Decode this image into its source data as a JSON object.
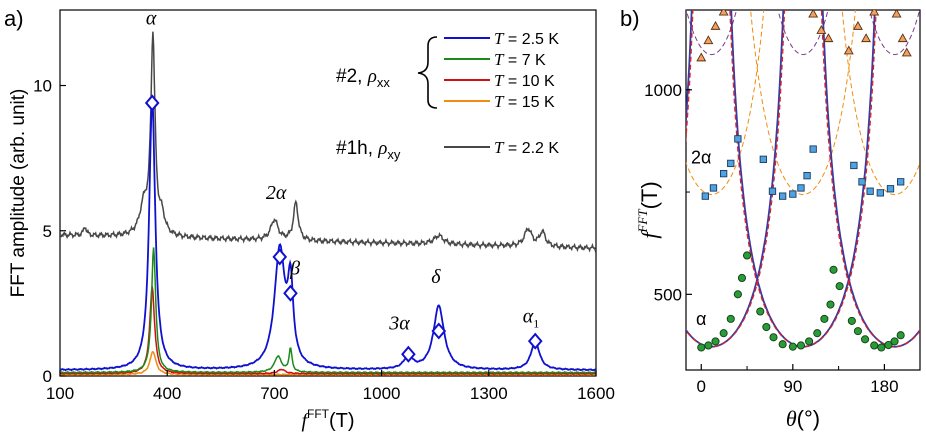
{
  "chart_data": [
    {
      "panel": "a)",
      "type": "line",
      "xlabel_main": "f",
      "xlabel_sup": "FFT",
      "xlabel_unit": "(T)",
      "ylabel": "FFT amplitude (arb. unit)",
      "xlim": [
        100,
        1600
      ],
      "ylim": [
        0,
        12.6
      ],
      "xticks": [
        100,
        400,
        700,
        1000,
        1300,
        1600
      ],
      "yticks": [
        0,
        5,
        10
      ],
      "series": [
        {
          "name": "T = 2.5 K",
          "temp": "2.5",
          "color": "#1010d0",
          "baseline": 0.2,
          "peaks": [
            [
              358,
              9.4,
              10
            ],
            [
              715,
              4.1,
              18
            ],
            [
              745,
              2.6,
              9
            ],
            [
              1075,
              0.45,
              14
            ],
            [
              1160,
              2.2,
              18
            ],
            [
              1430,
              1.0,
              14
            ]
          ]
        },
        {
          "name": "T = 7 K",
          "temp": "7",
          "color": "#1a8a1a",
          "baseline": 0.12,
          "peaks": [
            [
              362,
              4.3,
              7
            ],
            [
              710,
              0.55,
              12
            ],
            [
              745,
              0.8,
              5
            ]
          ]
        },
        {
          "name": "T = 10 K",
          "temp": "10",
          "color": "#d01010",
          "baseline": 0.08,
          "peaks": [
            [
              358,
              3.0,
              8
            ],
            [
              720,
              0.15,
              12
            ]
          ]
        },
        {
          "name": "T = 15 K",
          "temp": "15",
          "color": "#f08c10",
          "baseline": 0.05,
          "peaks": [
            [
              360,
              0.8,
              10
            ]
          ]
        },
        {
          "name": "T = 2.2 K",
          "temp": "2.2",
          "color": "#474747",
          "baseline": 4.85,
          "peaks": [
            [
              360,
              6.8,
              7
            ],
            [
              335,
              1.0,
              14
            ],
            [
              385,
              0.6,
              10
            ],
            [
              700,
              0.7,
              12
            ],
            [
              760,
              1.3,
              8
            ],
            [
              1160,
              0.3,
              16
            ],
            [
              1410,
              0.6,
              12
            ],
            [
              1450,
              0.5,
              10
            ],
            [
              170,
              0.3,
              5
            ]
          ]
        }
      ],
      "markers": [
        {
          "x": 358,
          "y": 9.4
        },
        {
          "x": 715,
          "y": 4.1
        },
        {
          "x": 745,
          "y": 2.85
        },
        {
          "x": 1075,
          "y": 0.75
        },
        {
          "x": 1160,
          "y": 1.55
        },
        {
          "x": 1430,
          "y": 1.2
        }
      ],
      "annotations": [
        {
          "text": "α",
          "x": 355,
          "y": 12.1
        },
        {
          "text": "2α",
          "x": 705,
          "y": 6.1
        },
        {
          "text": "β",
          "x": 758,
          "y": 3.5
        },
        {
          "text": "3α",
          "x": 1050,
          "y": 1.6
        },
        {
          "text": "δ",
          "x": 1152,
          "y": 3.2
        },
        {
          "text": "α1",
          "x": 1418,
          "y": 1.85
        }
      ],
      "legend": {
        "group1_label_prefix": "#2,",
        "group1_label_rho": "ρ",
        "group1_label_sub": "xx",
        "group2_label_prefix": "#1h,",
        "group2_label_rho": "ρ",
        "group2_label_sub": "xy",
        "T_symbol": "T",
        "eq": " = ",
        "unit": " K"
      }
    },
    {
      "panel": "b)",
      "type": "scatter",
      "xlabel": "θ",
      "xlabel_unit": "(°)",
      "ylabel_main": "f",
      "ylabel_sup": "FFT",
      "ylabel_unit": "(T)",
      "xlim": [
        -15,
        215
      ],
      "ylim": [
        315,
        1195
      ],
      "xticks": [
        0,
        90,
        180
      ],
      "yticks": [
        500,
        1000
      ],
      "labels": [
        {
          "text": "2α",
          "x": 0,
          "y": 820
        },
        {
          "text": "α",
          "x": 0,
          "y": 425
        }
      ],
      "alpha_points": [
        [
          0,
          370
        ],
        [
          7,
          375
        ],
        [
          14,
          385
        ],
        [
          22,
          405
        ],
        [
          29,
          440
        ],
        [
          36,
          500
        ],
        [
          40,
          540
        ],
        [
          45,
          595
        ],
        [
          58,
          458
        ],
        [
          64,
          420
        ],
        [
          71,
          395
        ],
        [
          80,
          378
        ],
        [
          90,
          372
        ],
        [
          98,
          375
        ],
        [
          106,
          385
        ],
        [
          114,
          405
        ],
        [
          121,
          440
        ],
        [
          127,
          475
        ],
        [
          130,
          560
        ],
        [
          136,
          520
        ],
        [
          148,
          435
        ],
        [
          154,
          410
        ],
        [
          161,
          390
        ],
        [
          170,
          375
        ],
        [
          177,
          370
        ],
        [
          184,
          376
        ],
        [
          190,
          385
        ],
        [
          196,
          400
        ]
      ],
      "two_alpha_points": [
        [
          4,
          740
        ],
        [
          12,
          760
        ],
        [
          22,
          795
        ],
        [
          29,
          820
        ],
        [
          36,
          880
        ],
        [
          61,
          830
        ],
        [
          70,
          752
        ],
        [
          80,
          740
        ],
        [
          90,
          745
        ],
        [
          98,
          760
        ],
        [
          104,
          790
        ],
        [
          110,
          855
        ],
        [
          150,
          815
        ],
        [
          158,
          775
        ],
        [
          166,
          752
        ],
        [
          176,
          748
        ],
        [
          186,
          758
        ],
        [
          196,
          775
        ]
      ],
      "triangle_points": [
        [
          0,
          1078
        ],
        [
          7,
          1120
        ],
        [
          14,
          1155
        ],
        [
          22,
          1190
        ],
        [
          110,
          1185
        ],
        [
          118,
          1145
        ],
        [
          125,
          1125
        ],
        [
          145,
          1095
        ],
        [
          154,
          1155
        ],
        [
          162,
          1125
        ],
        [
          170,
          1190
        ],
        [
          192,
          1185
        ],
        [
          198,
          1125
        ],
        [
          202,
          1090
        ]
      ],
      "curve_params": {
        "f0": 372,
        "centers": [
          -80,
          10,
          100,
          190
        ],
        "period": 90
      }
    }
  ]
}
